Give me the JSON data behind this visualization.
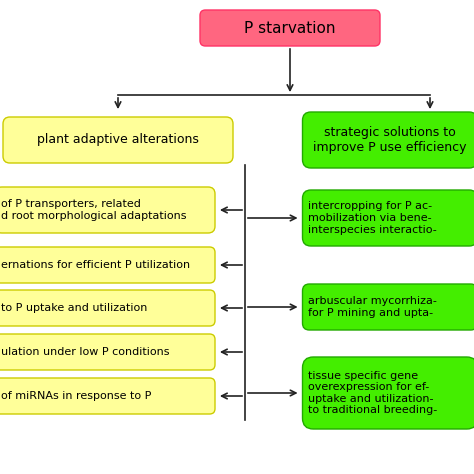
{
  "title_text": "P starvation",
  "title_bg": "#FF6680",
  "title_border": "#FF3366",
  "left_header": "plant adaptive alterations",
  "right_header": "strategic solutions to\nimprove P use efficiency",
  "left_header_bg": "#FFFF99",
  "left_header_border": "#CCCC00",
  "right_header_bg": "#44EE00",
  "right_header_border": "#22AA00",
  "left_items": [
    "of P transporters, related\nd root morphological adaptations",
    "ernations for efficient P utilization",
    "to P uptake and utilization",
    "ulation under low P conditions",
    "of miRNAs in response to P"
  ],
  "right_items": [
    "intercropping for P ac-\nmobilization via bene-\ninterspecies interactio-",
    "arbuscular mycorrhiza-\nfor P mining and upta-",
    "tissue specific gene\noverexpression for ef-\nuptake and utilization-\nto traditional breeding-"
  ],
  "left_item_bg": "#FFFF99",
  "left_item_border": "#CCCC00",
  "right_item_bg": "#44EE00",
  "right_item_border": "#22AA00",
  "arrow_color": "#222222",
  "bg_color": "#FFFFFF",
  "fontsize": 8.0,
  "header_fontsize": 9.0,
  "title_fontsize": 11.0
}
